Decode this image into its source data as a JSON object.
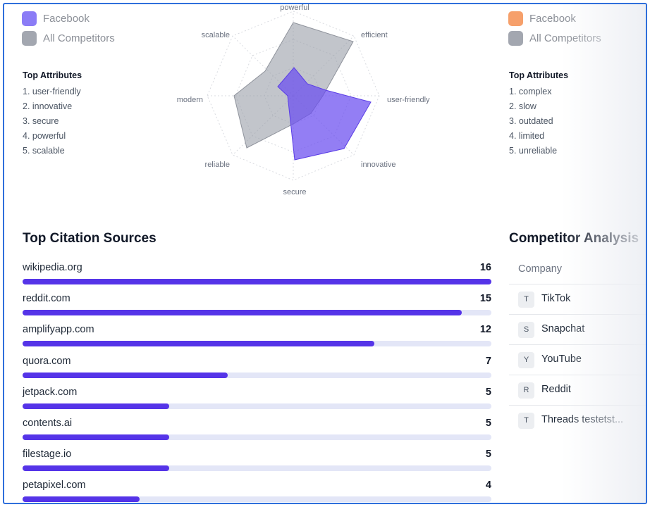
{
  "left_panel": {
    "legend": [
      {
        "label": "Facebook",
        "color": "#8b7cf6"
      },
      {
        "label": "All Competitors",
        "color": "#a3a7b0"
      }
    ],
    "attributes_title": "Top Attributes",
    "attributes": [
      "1. user-friendly",
      "2. innovative",
      "3. secure",
      "4. powerful",
      "5. scalable"
    ]
  },
  "right_panel": {
    "legend": [
      {
        "label": "Facebook",
        "color": "#f6a06b"
      },
      {
        "label": "All Competitors",
        "color": "#a3a7b0"
      }
    ],
    "attributes_title": "Top Attributes",
    "attributes": [
      "1. complex",
      "2. slow",
      "3. outdated",
      "4. limited",
      "5. unreliable"
    ]
  },
  "radar": {
    "axes": [
      "powerful",
      "efficient",
      "user-friendly",
      "innovative",
      "secure",
      "reliable",
      "modern",
      "scalable"
    ],
    "facebook_color": "#6a4cf0",
    "competitors_color": "#a3a7b0"
  },
  "citations": {
    "title": "Top Citation Sources",
    "max": 16,
    "items": [
      {
        "domain": "wikipedia.org",
        "count": 16
      },
      {
        "domain": "reddit.com",
        "count": 15
      },
      {
        "domain": "amplifyapp.com",
        "count": 12
      },
      {
        "domain": "quora.com",
        "count": 7
      },
      {
        "domain": "jetpack.com",
        "count": 5
      },
      {
        "domain": "contents.ai",
        "count": 5
      },
      {
        "domain": "filestage.io",
        "count": 5
      },
      {
        "domain": "petapixel.com",
        "count": 4
      }
    ]
  },
  "competitor_analysis": {
    "title": "Competitor Analysis",
    "column_header": "Company",
    "companies": [
      {
        "initial": "T",
        "name": "TikTok"
      },
      {
        "initial": "S",
        "name": "Snapchat"
      },
      {
        "initial": "Y",
        "name": "YouTube"
      },
      {
        "initial": "R",
        "name": "Reddit"
      },
      {
        "initial": "T",
        "name": "Threads testetst..."
      }
    ]
  }
}
